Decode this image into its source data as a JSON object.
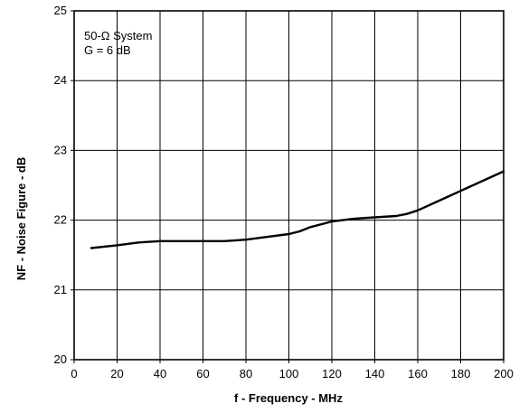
{
  "chart_data": {
    "type": "line",
    "title": "",
    "xlabel": "f - Frequency - MHz",
    "ylabel": "NF - Noise Figure - dB",
    "xlim": [
      0,
      200
    ],
    "ylim": [
      20,
      25
    ],
    "x_ticks": [
      0,
      20,
      40,
      60,
      80,
      100,
      120,
      140,
      160,
      180,
      200
    ],
    "y_ticks": [
      20,
      21,
      22,
      23,
      24,
      25
    ],
    "grid": true,
    "annotations": [
      "50-Ω  System",
      "G = 6 dB"
    ],
    "series": [
      {
        "x": [
          8,
          20,
          30,
          40,
          50,
          60,
          70,
          80,
          90,
          100,
          105,
          110,
          120,
          130,
          140,
          150,
          155,
          160,
          170,
          180,
          190,
          200
        ],
        "y": [
          21.6,
          21.64,
          21.68,
          21.7,
          21.7,
          21.7,
          21.7,
          21.72,
          21.76,
          21.8,
          21.84,
          21.9,
          21.98,
          22.02,
          22.04,
          22.06,
          22.09,
          22.14,
          22.28,
          22.42,
          22.56,
          22.7
        ]
      }
    ],
    "colors": {
      "line": "#000000",
      "grid": "#000000",
      "background": "#ffffff"
    }
  }
}
